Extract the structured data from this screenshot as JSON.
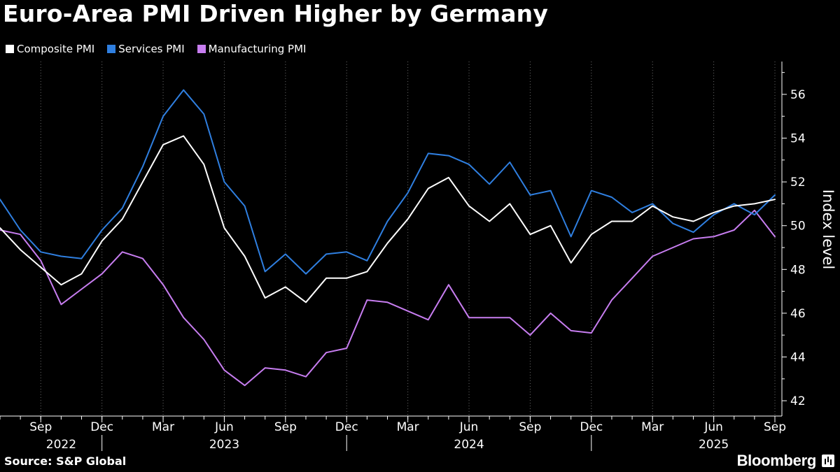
{
  "page": {
    "title": "Euro-Area PMI Driven Higher by Germany",
    "source": "Source: S&P Global",
    "brand": "Bloomberg",
    "background": "#000000"
  },
  "chart_data": {
    "type": "line",
    "title": "Euro-Area PMI Driven Higher by Germany",
    "xlabel": "",
    "ylabel": "Index level",
    "y_axis_side": "right",
    "ylim": [
      41.3,
      57.5
    ],
    "yticks": [
      42,
      44,
      46,
      48,
      50,
      52,
      54,
      56
    ],
    "grid": "vertical dotted at quarter ticks",
    "legend": "top-left",
    "x": [
      "2022-07",
      "2022-08",
      "2022-09",
      "2022-10",
      "2022-11",
      "2022-12",
      "2023-01",
      "2023-02",
      "2023-03",
      "2023-04",
      "2023-05",
      "2023-06",
      "2023-07",
      "2023-08",
      "2023-09",
      "2023-10",
      "2023-11",
      "2023-12",
      "2024-01",
      "2024-02",
      "2024-03",
      "2024-04",
      "2024-05",
      "2024-06",
      "2024-07",
      "2024-08",
      "2024-09",
      "2024-10",
      "2024-11",
      "2024-12",
      "2025-01",
      "2025-02",
      "2025-03",
      "2025-04",
      "2025-05",
      "2025-06",
      "2025-07",
      "2025-08",
      "2025-09"
    ],
    "x_tick_labels": [
      {
        "date": "2022-09",
        "label": "Sep"
      },
      {
        "date": "2022-12",
        "label": "Dec"
      },
      {
        "date": "2023-03",
        "label": "Mar"
      },
      {
        "date": "2023-06",
        "label": "Jun"
      },
      {
        "date": "2023-09",
        "label": "Sep"
      },
      {
        "date": "2023-12",
        "label": "Dec"
      },
      {
        "date": "2024-03",
        "label": "Mar"
      },
      {
        "date": "2024-06",
        "label": "Jun"
      },
      {
        "date": "2024-09",
        "label": "Sep"
      },
      {
        "date": "2024-12",
        "label": "Dec"
      },
      {
        "date": "2025-03",
        "label": "Mar"
      },
      {
        "date": "2025-06",
        "label": "Jun"
      },
      {
        "date": "2025-09",
        "label": "Sep"
      }
    ],
    "x_year_labels": [
      {
        "date": "2022-10",
        "label": "2022"
      },
      {
        "date": "2023-06",
        "label": "2023"
      },
      {
        "date": "2024-06",
        "label": "2024"
      },
      {
        "date": "2025-06",
        "label": "2025"
      }
    ],
    "x_year_dividers": [
      "2022-12",
      "2023-12",
      "2024-12"
    ],
    "series": [
      {
        "name": "Composite PMI",
        "color": "#ffffff",
        "values": [
          49.9,
          48.9,
          48.1,
          47.3,
          47.8,
          49.3,
          50.3,
          52.0,
          53.7,
          54.1,
          52.8,
          49.9,
          48.6,
          46.7,
          47.2,
          46.5,
          47.6,
          47.6,
          47.9,
          49.2,
          50.3,
          51.7,
          52.2,
          50.9,
          50.2,
          51.0,
          49.6,
          50.0,
          48.3,
          49.6,
          50.2,
          50.2,
          50.9,
          50.4,
          50.2,
          50.6,
          50.9,
          51.0,
          51.2
        ]
      },
      {
        "name": "Services PMI",
        "color": "#2f7fe0",
        "values": [
          51.2,
          49.8,
          48.8,
          48.6,
          48.5,
          49.8,
          50.8,
          52.7,
          55.0,
          56.2,
          55.1,
          52.0,
          50.9,
          47.9,
          48.7,
          47.8,
          48.7,
          48.8,
          48.4,
          50.2,
          51.5,
          53.3,
          53.2,
          52.8,
          51.9,
          52.9,
          51.4,
          51.6,
          49.5,
          51.6,
          51.3,
          50.6,
          51.0,
          50.1,
          49.7,
          50.5,
          51.0,
          50.5,
          51.4
        ]
      },
      {
        "name": "Manufacturing PMI",
        "color": "#c77df0",
        "values": [
          49.8,
          49.6,
          48.4,
          46.4,
          47.1,
          47.8,
          48.8,
          48.5,
          47.3,
          45.8,
          44.8,
          43.4,
          42.7,
          43.5,
          43.4,
          43.1,
          44.2,
          44.4,
          46.6,
          46.5,
          46.1,
          45.7,
          47.3,
          45.8,
          45.8,
          45.8,
          45.0,
          46.0,
          45.2,
          45.1,
          46.6,
          47.6,
          48.6,
          49.0,
          49.4,
          49.5,
          49.8,
          50.7,
          49.5
        ]
      }
    ]
  }
}
